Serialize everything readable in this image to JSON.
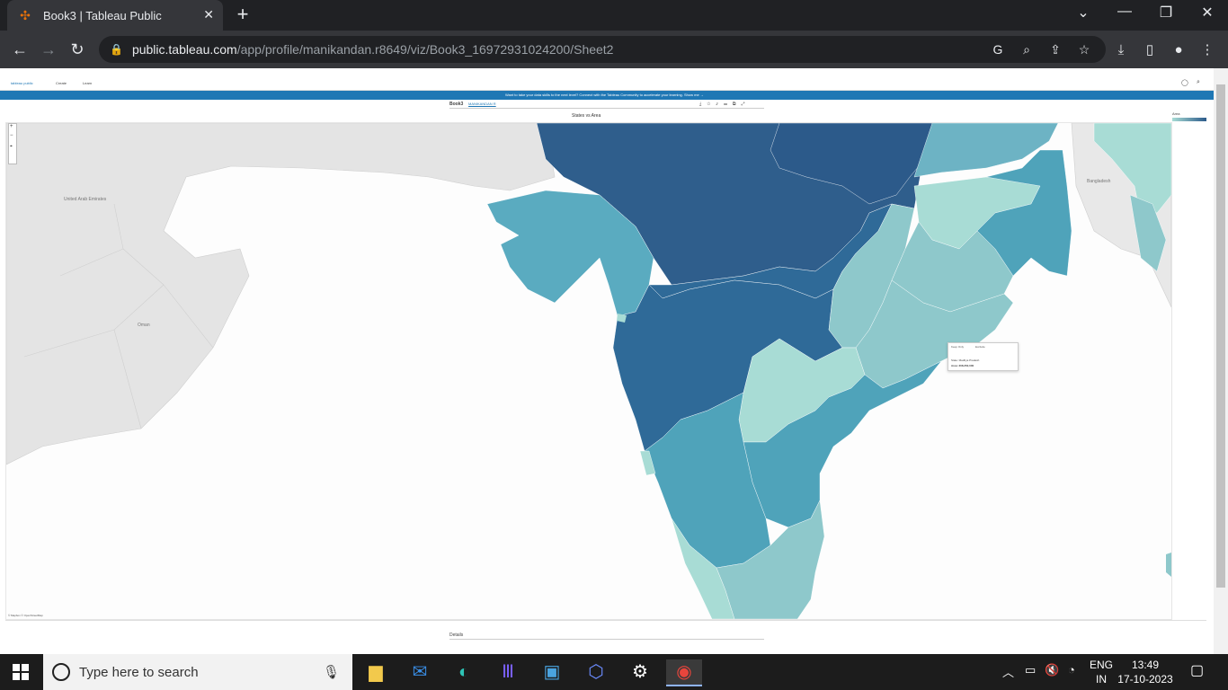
{
  "browser": {
    "tab_title": "Book3 | Tableau Public",
    "url_host": "public.tableau.com",
    "url_path": "/app/profile/manikandan.r8649/viz/Book3_16972931024200/Sheet2"
  },
  "tableau": {
    "site_nav": [
      "Create",
      "Learn"
    ],
    "banner_text": "Want to take your data skills to the next level? Connect with the Tableau Community to accelerate your learning. Show me →",
    "workbook_title": "Book3",
    "author": "MANIKANDAN R",
    "viz_title": "States vs Area",
    "legend_label": "Area",
    "details_label": "Details",
    "tooltip": {
      "controls": [
        "Keep Only",
        "Exclude"
      ],
      "line1": "State: Madhya Pradesh",
      "line2": "Area: 308,252,000"
    },
    "map_labels": [
      "United Arab Emirates",
      "Oman",
      "Bangladesh"
    ],
    "attribution": "© Mapbox © OpenStreetMap",
    "map_type": "filled choropleth map",
    "colors": {
      "darkest": "#2f5e8c",
      "dark": "#33709b",
      "mid": "#4fa3ba",
      "light": "#8ec8cb",
      "lightest": "#a8dcd5",
      "land": "#e4e4e4",
      "water": "#fdfdfd"
    }
  },
  "taskbar": {
    "search_placeholder": "Type here to search",
    "language": "ENG",
    "region": "IN",
    "time": "13:49",
    "date": "17-10-2023"
  }
}
